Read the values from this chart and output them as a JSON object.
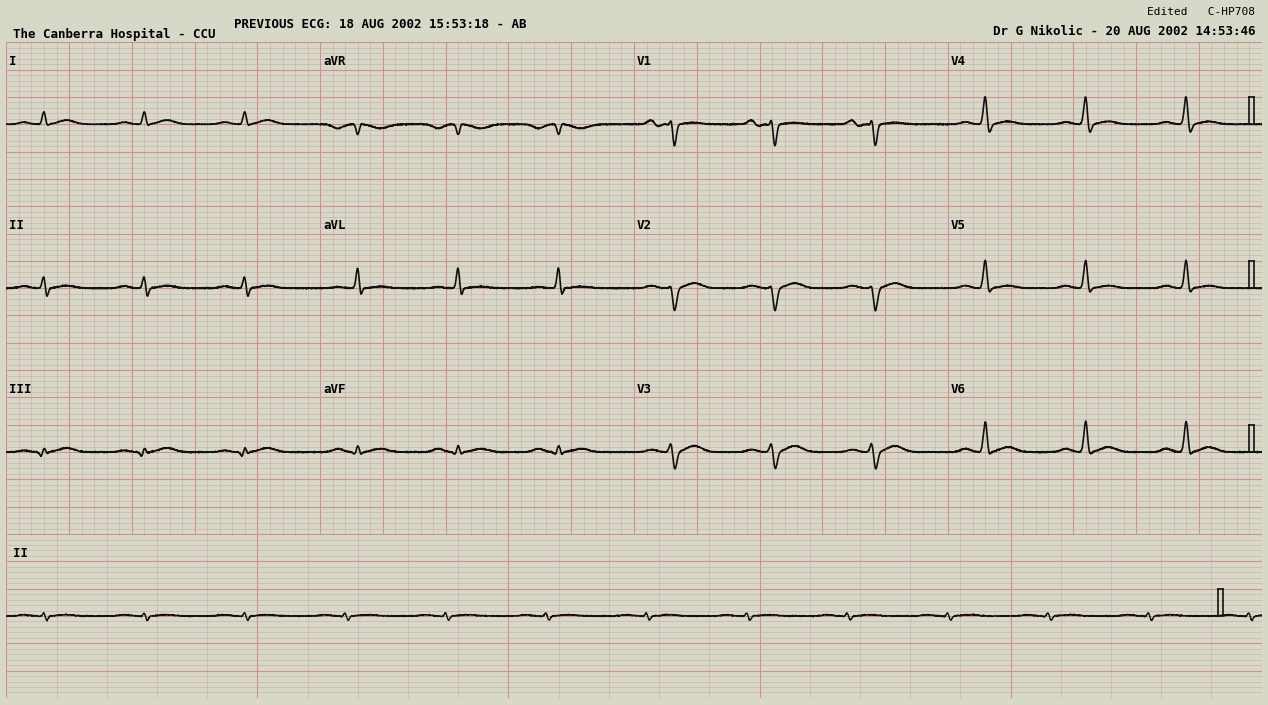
{
  "bg_color": "#d8d8c8",
  "grid_minor_color": "#c8a8a8",
  "grid_major_color": "#d09090",
  "ecg_color": "#111111",
  "fig_width": 12.68,
  "fig_height": 7.05,
  "title_left": "PREVIOUS ECG: 18 AUG 2002 15:53:18 - AB",
  "subtitle_left": "The Canberra Hospital - CCU",
  "title_right_top": "Edited   C-HP708",
  "title_right_bottom": "Dr G Nikolic - 20 AUG 2002 14:53:46",
  "lead_labels": [
    "I",
    "aVR",
    "V1",
    "V4",
    "II",
    "aVL",
    "V2",
    "V5",
    "III",
    "aVF",
    "V3",
    "V6",
    "II"
  ],
  "sample_rate": 500,
  "duration": 10.0
}
